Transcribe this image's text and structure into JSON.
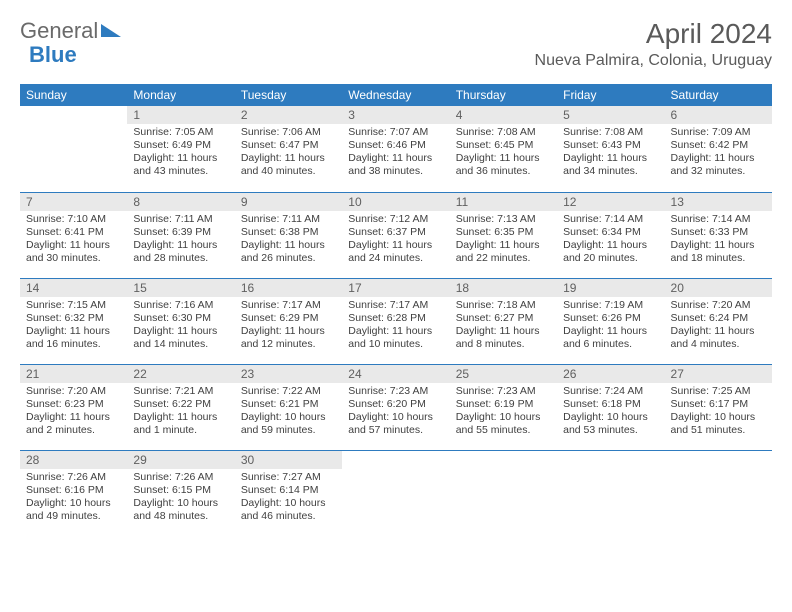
{
  "brand": {
    "part1": "General",
    "part2": "Blue"
  },
  "title": "April 2024",
  "location": "Nueva Palmira, Colonia, Uruguay",
  "colors": {
    "header_bg": "#2e7bbf",
    "daynum_bg": "#e9e9e9",
    "rule": "#2e7bbf"
  },
  "weekdays": [
    "Sunday",
    "Monday",
    "Tuesday",
    "Wednesday",
    "Thursday",
    "Friday",
    "Saturday"
  ],
  "weeks": [
    [
      {
        "n": "",
        "sunrise": "",
        "sunset": "",
        "daylight": ""
      },
      {
        "n": "1",
        "sunrise": "Sunrise: 7:05 AM",
        "sunset": "Sunset: 6:49 PM",
        "daylight": "Daylight: 11 hours and 43 minutes."
      },
      {
        "n": "2",
        "sunrise": "Sunrise: 7:06 AM",
        "sunset": "Sunset: 6:47 PM",
        "daylight": "Daylight: 11 hours and 40 minutes."
      },
      {
        "n": "3",
        "sunrise": "Sunrise: 7:07 AM",
        "sunset": "Sunset: 6:46 PM",
        "daylight": "Daylight: 11 hours and 38 minutes."
      },
      {
        "n": "4",
        "sunrise": "Sunrise: 7:08 AM",
        "sunset": "Sunset: 6:45 PM",
        "daylight": "Daylight: 11 hours and 36 minutes."
      },
      {
        "n": "5",
        "sunrise": "Sunrise: 7:08 AM",
        "sunset": "Sunset: 6:43 PM",
        "daylight": "Daylight: 11 hours and 34 minutes."
      },
      {
        "n": "6",
        "sunrise": "Sunrise: 7:09 AM",
        "sunset": "Sunset: 6:42 PM",
        "daylight": "Daylight: 11 hours and 32 minutes."
      }
    ],
    [
      {
        "n": "7",
        "sunrise": "Sunrise: 7:10 AM",
        "sunset": "Sunset: 6:41 PM",
        "daylight": "Daylight: 11 hours and 30 minutes."
      },
      {
        "n": "8",
        "sunrise": "Sunrise: 7:11 AM",
        "sunset": "Sunset: 6:39 PM",
        "daylight": "Daylight: 11 hours and 28 minutes."
      },
      {
        "n": "9",
        "sunrise": "Sunrise: 7:11 AM",
        "sunset": "Sunset: 6:38 PM",
        "daylight": "Daylight: 11 hours and 26 minutes."
      },
      {
        "n": "10",
        "sunrise": "Sunrise: 7:12 AM",
        "sunset": "Sunset: 6:37 PM",
        "daylight": "Daylight: 11 hours and 24 minutes."
      },
      {
        "n": "11",
        "sunrise": "Sunrise: 7:13 AM",
        "sunset": "Sunset: 6:35 PM",
        "daylight": "Daylight: 11 hours and 22 minutes."
      },
      {
        "n": "12",
        "sunrise": "Sunrise: 7:14 AM",
        "sunset": "Sunset: 6:34 PM",
        "daylight": "Daylight: 11 hours and 20 minutes."
      },
      {
        "n": "13",
        "sunrise": "Sunrise: 7:14 AM",
        "sunset": "Sunset: 6:33 PM",
        "daylight": "Daylight: 11 hours and 18 minutes."
      }
    ],
    [
      {
        "n": "14",
        "sunrise": "Sunrise: 7:15 AM",
        "sunset": "Sunset: 6:32 PM",
        "daylight": "Daylight: 11 hours and 16 minutes."
      },
      {
        "n": "15",
        "sunrise": "Sunrise: 7:16 AM",
        "sunset": "Sunset: 6:30 PM",
        "daylight": "Daylight: 11 hours and 14 minutes."
      },
      {
        "n": "16",
        "sunrise": "Sunrise: 7:17 AM",
        "sunset": "Sunset: 6:29 PM",
        "daylight": "Daylight: 11 hours and 12 minutes."
      },
      {
        "n": "17",
        "sunrise": "Sunrise: 7:17 AM",
        "sunset": "Sunset: 6:28 PM",
        "daylight": "Daylight: 11 hours and 10 minutes."
      },
      {
        "n": "18",
        "sunrise": "Sunrise: 7:18 AM",
        "sunset": "Sunset: 6:27 PM",
        "daylight": "Daylight: 11 hours and 8 minutes."
      },
      {
        "n": "19",
        "sunrise": "Sunrise: 7:19 AM",
        "sunset": "Sunset: 6:26 PM",
        "daylight": "Daylight: 11 hours and 6 minutes."
      },
      {
        "n": "20",
        "sunrise": "Sunrise: 7:20 AM",
        "sunset": "Sunset: 6:24 PM",
        "daylight": "Daylight: 11 hours and 4 minutes."
      }
    ],
    [
      {
        "n": "21",
        "sunrise": "Sunrise: 7:20 AM",
        "sunset": "Sunset: 6:23 PM",
        "daylight": "Daylight: 11 hours and 2 minutes."
      },
      {
        "n": "22",
        "sunrise": "Sunrise: 7:21 AM",
        "sunset": "Sunset: 6:22 PM",
        "daylight": "Daylight: 11 hours and 1 minute."
      },
      {
        "n": "23",
        "sunrise": "Sunrise: 7:22 AM",
        "sunset": "Sunset: 6:21 PM",
        "daylight": "Daylight: 10 hours and 59 minutes."
      },
      {
        "n": "24",
        "sunrise": "Sunrise: 7:23 AM",
        "sunset": "Sunset: 6:20 PM",
        "daylight": "Daylight: 10 hours and 57 minutes."
      },
      {
        "n": "25",
        "sunrise": "Sunrise: 7:23 AM",
        "sunset": "Sunset: 6:19 PM",
        "daylight": "Daylight: 10 hours and 55 minutes."
      },
      {
        "n": "26",
        "sunrise": "Sunrise: 7:24 AM",
        "sunset": "Sunset: 6:18 PM",
        "daylight": "Daylight: 10 hours and 53 minutes."
      },
      {
        "n": "27",
        "sunrise": "Sunrise: 7:25 AM",
        "sunset": "Sunset: 6:17 PM",
        "daylight": "Daylight: 10 hours and 51 minutes."
      }
    ],
    [
      {
        "n": "28",
        "sunrise": "Sunrise: 7:26 AM",
        "sunset": "Sunset: 6:16 PM",
        "daylight": "Daylight: 10 hours and 49 minutes."
      },
      {
        "n": "29",
        "sunrise": "Sunrise: 7:26 AM",
        "sunset": "Sunset: 6:15 PM",
        "daylight": "Daylight: 10 hours and 48 minutes."
      },
      {
        "n": "30",
        "sunrise": "Sunrise: 7:27 AM",
        "sunset": "Sunset: 6:14 PM",
        "daylight": "Daylight: 10 hours and 46 minutes."
      },
      {
        "n": "",
        "sunrise": "",
        "sunset": "",
        "daylight": ""
      },
      {
        "n": "",
        "sunrise": "",
        "sunset": "",
        "daylight": ""
      },
      {
        "n": "",
        "sunrise": "",
        "sunset": "",
        "daylight": ""
      },
      {
        "n": "",
        "sunrise": "",
        "sunset": "",
        "daylight": ""
      }
    ]
  ]
}
